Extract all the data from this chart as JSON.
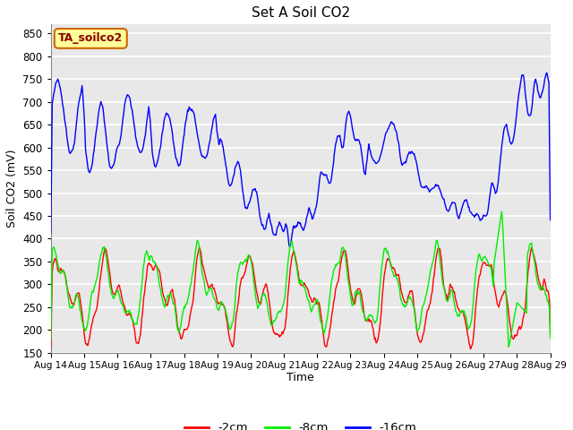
{
  "title": "Set A Soil CO2",
  "ylabel": "Soil CO2 (mV)",
  "xlabel": "Time",
  "ylim": [
    150,
    870
  ],
  "yticks": [
    150,
    200,
    250,
    300,
    350,
    400,
    450,
    500,
    550,
    600,
    650,
    700,
    750,
    800,
    850
  ],
  "bg_color": "#dcdcdc",
  "plot_bg": "#e8e8e8",
  "legend_label": "TA_soilco2",
  "legend_bg": "#ffff99",
  "legend_border": "#cc0000",
  "series": {
    "red": {
      "label": "-2cm",
      "color": "#ff0000"
    },
    "green": {
      "label": "-8cm",
      "color": "#00ee00"
    },
    "blue": {
      "label": "-16cm",
      "color": "#0000ff"
    }
  },
  "xticklabels": [
    "Aug 14",
    "Aug 15",
    "Aug 16",
    "Aug 17",
    "Aug 18",
    "Aug 19",
    "Aug 20",
    "Aug 21",
    "Aug 22",
    "Aug 23",
    "Aug 24",
    "Aug 25",
    "Aug 26",
    "Aug 27",
    "Aug 28",
    "Aug 29"
  ],
  "n_days": 15,
  "points_per_day": 48
}
